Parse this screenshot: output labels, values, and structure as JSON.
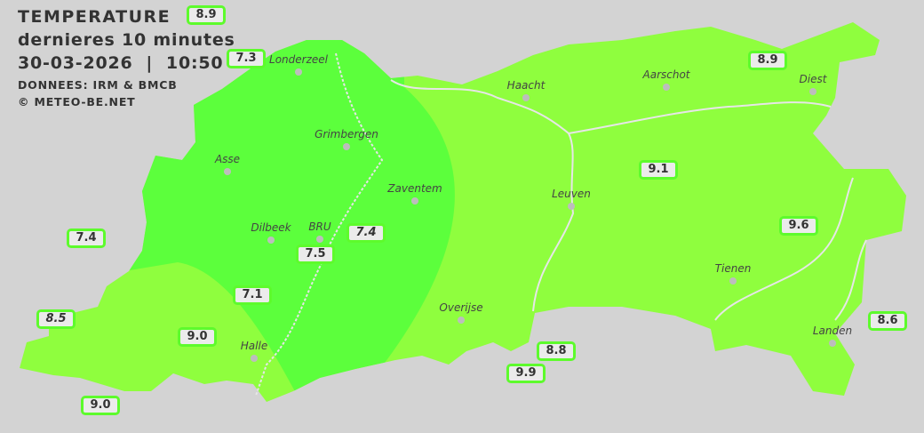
{
  "header": {
    "title": "TEMPERATURE",
    "subtitle": "dernieres 10 minutes",
    "datetime": "30-03-2026  |  10:50",
    "source": "DONNEES: IRM & BMCB",
    "copyright": "© METEO-BE.NET"
  },
  "colors": {
    "background": "#d3d3d3",
    "zone_cool": "#5cff3c",
    "zone_warm": "#8ffe3e",
    "station_border": "#5dfb2c"
  },
  "cities": [
    {
      "name": "Londerzeel"
    },
    {
      "name": "Haacht"
    },
    {
      "name": "Aarschot"
    },
    {
      "name": "Diest"
    },
    {
      "name": "Grimbergen"
    },
    {
      "name": "Asse"
    },
    {
      "name": "Zaventem"
    },
    {
      "name": "Leuven"
    },
    {
      "name": "Dilbeek"
    },
    {
      "name": "BRU"
    },
    {
      "name": "Tienen"
    },
    {
      "name": "Overijse"
    },
    {
      "name": "Halle"
    },
    {
      "name": "Landen"
    }
  ],
  "stations": [
    {
      "value": "8.9",
      "italic": false
    },
    {
      "value": "7.3",
      "italic": false
    },
    {
      "value": "8.9",
      "italic": false
    },
    {
      "value": "9.1",
      "italic": false
    },
    {
      "value": "7.4",
      "italic": false
    },
    {
      "value": "7.5",
      "italic": false
    },
    {
      "value": "7.4",
      "italic": true
    },
    {
      "value": "9.6",
      "italic": false
    },
    {
      "value": "7.1",
      "italic": false
    },
    {
      "value": "8.5",
      "italic": true
    },
    {
      "value": "9.0",
      "italic": false
    },
    {
      "value": "8.8",
      "italic": false
    },
    {
      "value": "9.9",
      "italic": false
    },
    {
      "value": "8.6",
      "italic": false
    },
    {
      "value": "9.0",
      "italic": false
    }
  ]
}
